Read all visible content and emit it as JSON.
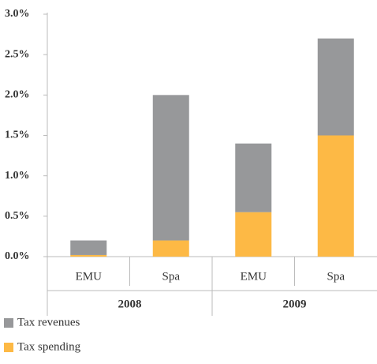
{
  "chart_data": {
    "type": "stacked-bar",
    "categories": [
      "EMU",
      "Spa",
      "EMU",
      "Spa"
    ],
    "groups": [
      "2008",
      "2009"
    ],
    "series": [
      {
        "name": "Tax revenues",
        "color": "#97989a",
        "values": [
          0.18,
          1.8,
          0.85,
          1.2
        ]
      },
      {
        "name": "Tax spending",
        "color": "#fdb945",
        "values": [
          0.02,
          0.2,
          0.55,
          1.5
        ]
      }
    ],
    "ylim": [
      0,
      3
    ],
    "yticks": [
      {
        "value": 0,
        "label": "0.0%"
      },
      {
        "value": 0.5,
        "label": "0.5%"
      },
      {
        "value": 1,
        "label": "1.0%"
      },
      {
        "value": 1.5,
        "label": "1.5%"
      },
      {
        "value": 2,
        "label": "2.0%"
      },
      {
        "value": 2.5,
        "label": "2.5%"
      },
      {
        "value": 3,
        "label": "3.0%"
      }
    ]
  }
}
